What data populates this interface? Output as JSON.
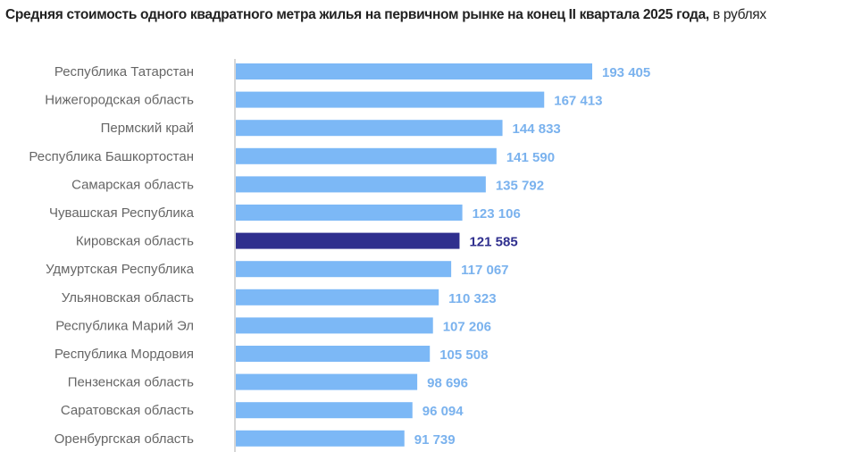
{
  "chart_data": {
    "type": "bar",
    "orientation": "horizontal",
    "title": "Средняя стоимость одного квадратного метра жилья на первичном рынке на конец II квартала 2025 года,",
    "subtitle": "в рублях",
    "categories": [
      "Республика Татарстан",
      "Нижегородская область",
      "Пермский край",
      "Республика Башкортостан",
      "Самарская область",
      "Чувашская Республика",
      "Кировская область",
      "Удмуртская Республика",
      "Ульяновская область",
      "Республика Марий Эл",
      "Республика Мордовия",
      "Пензенская область",
      "Саратовская область",
      "Оренбургская область"
    ],
    "values": [
      193405,
      167413,
      144833,
      141590,
      135792,
      123106,
      121585,
      117067,
      110323,
      107206,
      105508,
      98696,
      96094,
      91739
    ],
    "data_labels": [
      "193 405",
      "167 413",
      "144 833",
      "141 590",
      "135 792",
      "123 106",
      "121 585",
      "117 067",
      "110 323",
      "107 206",
      "105 508",
      "98 696",
      "96 094",
      "91 739"
    ],
    "highlight": "Кировская область",
    "xlim": [
      0,
      193405
    ],
    "grid": false,
    "legend": "none",
    "colors": {
      "bar": "#7cb8f6",
      "highlight": "#2f2f8e",
      "label": "#7ab2ee",
      "highlight_label": "#2f2f8e",
      "category": "#666666",
      "axis": "#c8c8c8"
    }
  }
}
